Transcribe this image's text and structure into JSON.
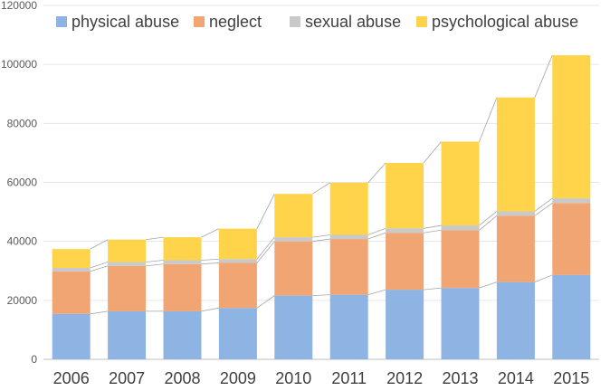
{
  "chart_data": {
    "type": "bar",
    "stacked": true,
    "categories": [
      "2006",
      "2007",
      "2008",
      "2009",
      "2010",
      "2011",
      "2012",
      "2013",
      "2014",
      "2015"
    ],
    "series": [
      {
        "name": "physical abuse",
        "color": "#8db4e2",
        "values": [
          15400,
          16300,
          16300,
          17400,
          21600,
          21900,
          23600,
          24200,
          26200,
          28600
        ]
      },
      {
        "name": "neglect",
        "color": "#f0a573",
        "values": [
          14400,
          15400,
          16000,
          15300,
          18400,
          18900,
          19300,
          19600,
          22500,
          24400
        ]
      },
      {
        "name": "sexual abuse",
        "color": "#c9c9c9",
        "values": [
          1200,
          1300,
          1300,
          1300,
          1400,
          1400,
          1500,
          1600,
          1500,
          1600
        ]
      },
      {
        "name": "psychological abuse",
        "color": "#ffd34a",
        "values": [
          6400,
          7600,
          7800,
          10300,
          14700,
          17700,
          22200,
          28400,
          38600,
          48500
        ]
      }
    ],
    "ylim": [
      0,
      120000
    ],
    "yticks": [
      "0",
      "20000",
      "40000",
      "60000",
      "80000",
      "100000",
      "120000"
    ],
    "grid": true,
    "legend": "top",
    "connector_lines": true
  }
}
